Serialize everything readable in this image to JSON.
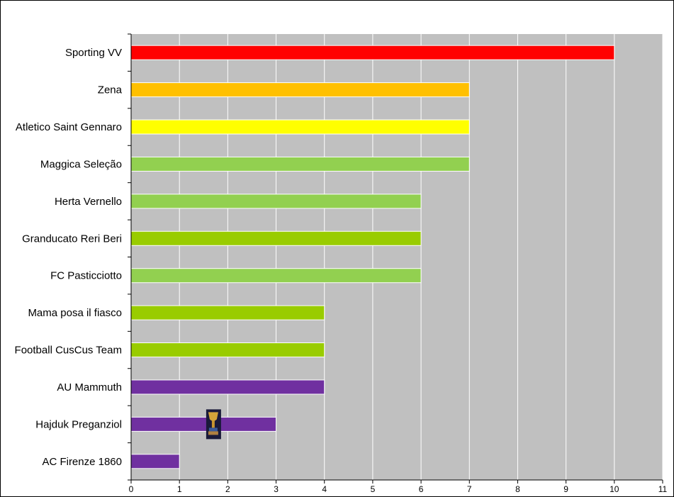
{
  "chart_data": {
    "type": "bar",
    "orientation": "horizontal",
    "title": "",
    "xlabel": "",
    "ylabel": "",
    "xlim": [
      0,
      11
    ],
    "x_ticks": [
      0,
      1,
      2,
      3,
      4,
      5,
      6,
      7,
      8,
      9,
      10,
      11
    ],
    "grid": "vertical",
    "background_color": "#c0c0c0",
    "grid_color": "#ffffff",
    "categories": [
      "Sporting VV",
      "Zena",
      "Atletico Saint Gennaro",
      "Maggica Seleção",
      "Herta Vernello",
      "Granducato Reri Beri",
      "FC Pasticciotto",
      "Mama posa il fiasco",
      "Football CusCus Team",
      "AU Mammuth",
      "Hajduk Preganziol",
      "AC Firenze 1860"
    ],
    "values": [
      10,
      7,
      7,
      7,
      6,
      6,
      6,
      4,
      4,
      4,
      3,
      1
    ],
    "bar_colors": [
      "#ff0000",
      "#ffc000",
      "#ffff00",
      "#92d050",
      "#92d050",
      "#99cc00",
      "#92d050",
      "#99cc00",
      "#99cc00",
      "#7030a0",
      "#7030a0",
      "#7030a0"
    ],
    "icon_marker": {
      "category": "Hajduk Preganziol",
      "x": 1.7,
      "icon": "trophy-icon"
    }
  }
}
